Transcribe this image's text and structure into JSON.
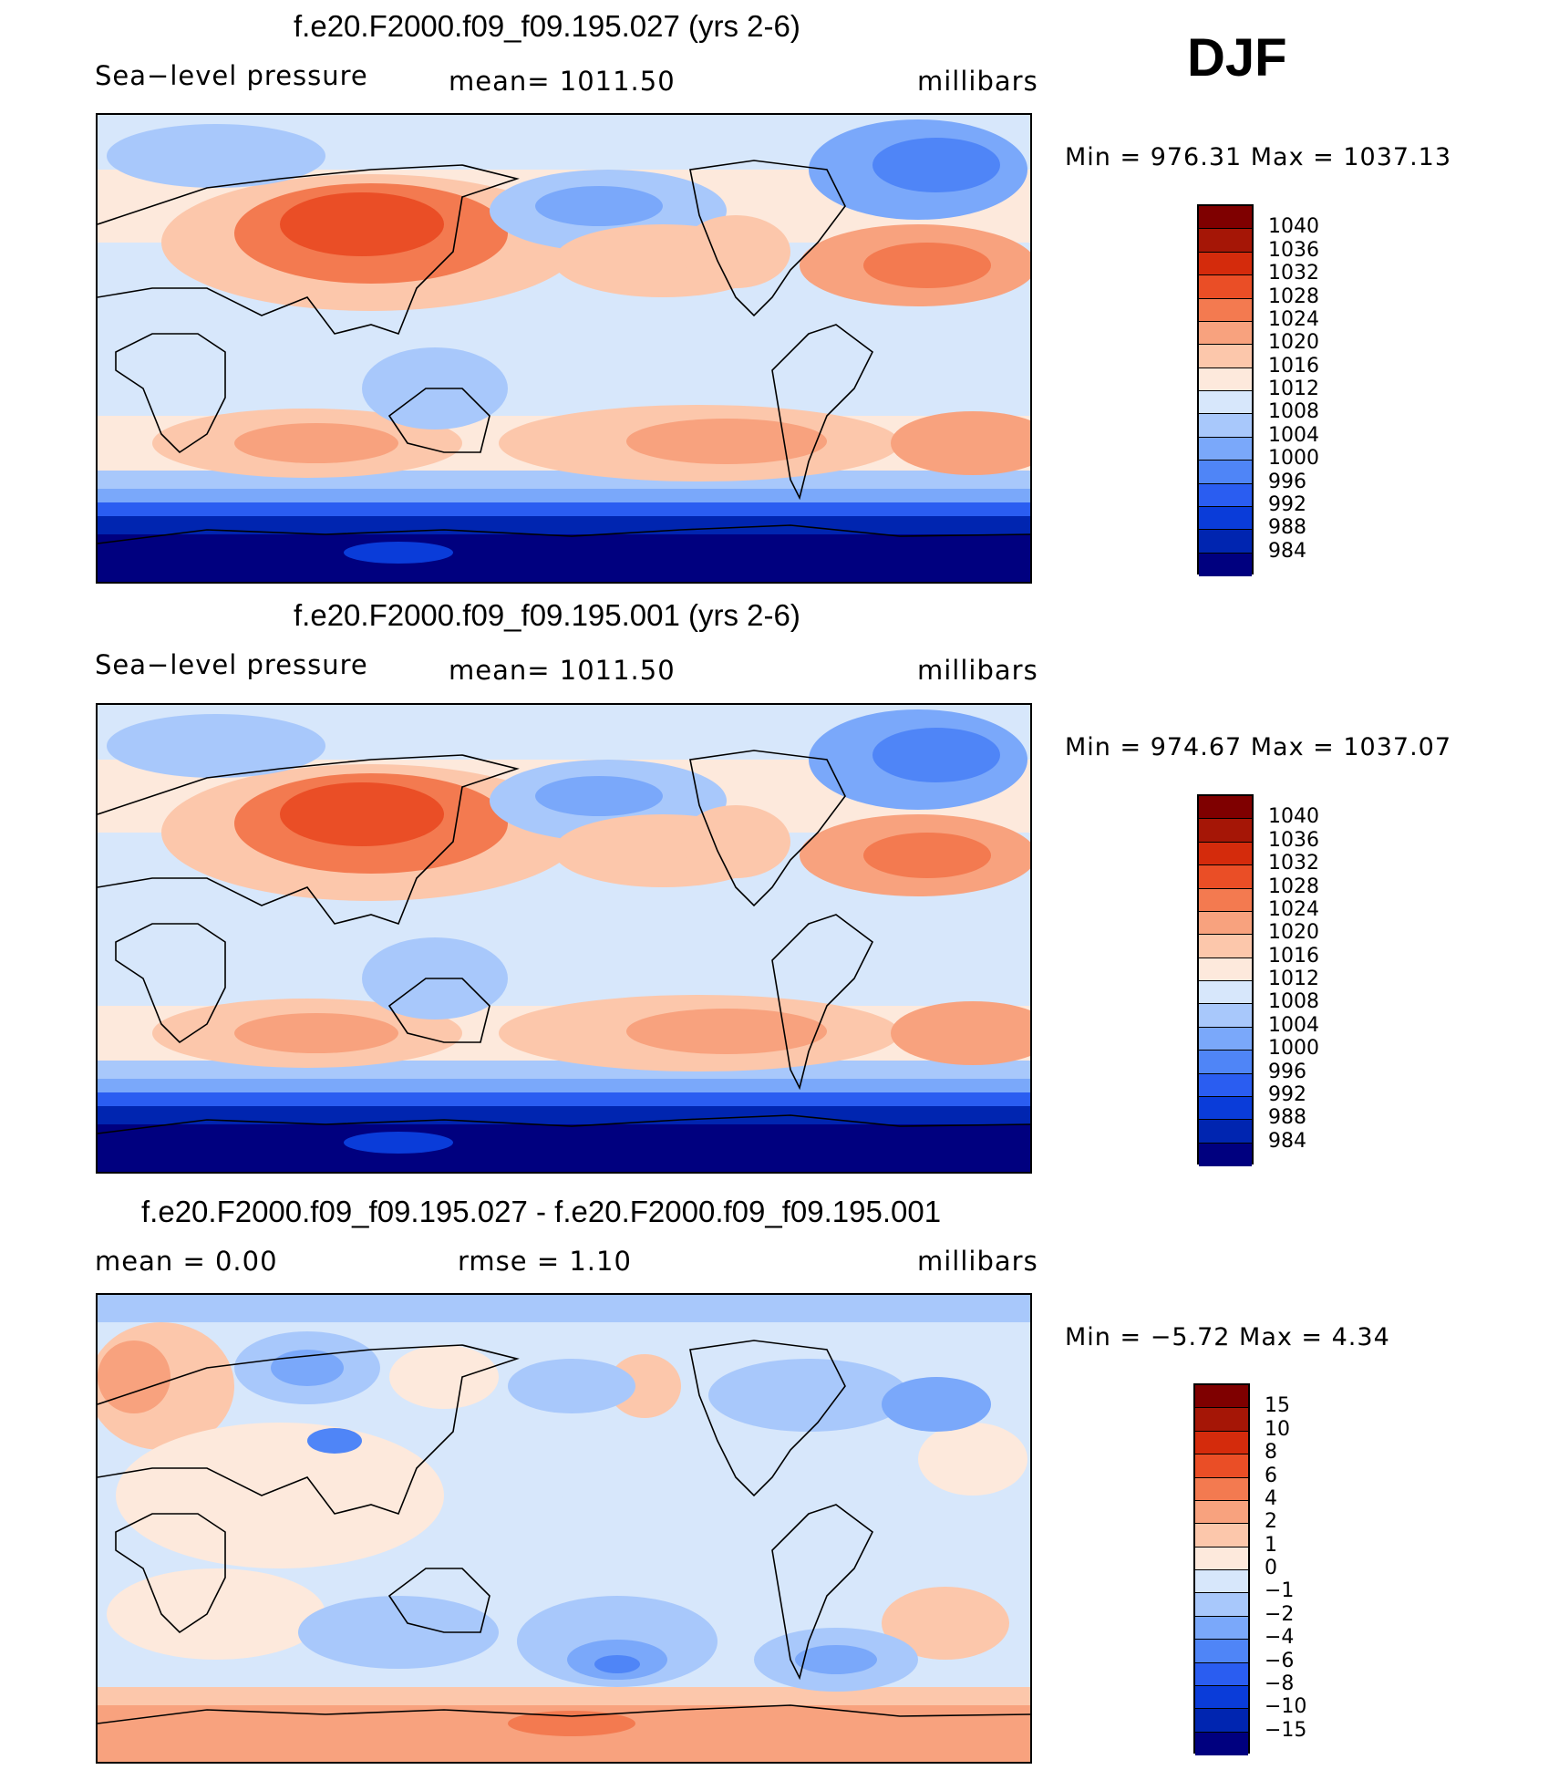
{
  "season": "DJF",
  "colors": {
    "slp": [
      "#00007f",
      "#0025b0",
      "#0a3cd9",
      "#2a5df1",
      "#4f85f7",
      "#7aa8fa",
      "#a8c8fb",
      "#d7e7fb",
      "#fde9dc",
      "#fcc7ab",
      "#f8a27e",
      "#f37a50",
      "#ea4e26",
      "#d42b0c",
      "#a51606",
      "#7f0000"
    ],
    "diff": [
      "#00007f",
      "#0025b0",
      "#0a3cd9",
      "#2a5df1",
      "#4f85f7",
      "#7aa8fa",
      "#a8c8fb",
      "#d7e7fb",
      "#fde9dc",
      "#fcc7ab",
      "#f8a27e",
      "#f37a50",
      "#ea4e26",
      "#d42b0c",
      "#a51606",
      "#7f0000"
    ]
  },
  "chart_data": [
    {
      "type": "heatmap",
      "title": "f.e20.F2000.f09_f09.195.027 (yrs 2-6)",
      "variable": "Sea−level pressure",
      "mean_label": "mean=  1011.50",
      "units": "millibars",
      "min_max": "Min  =  976.31  Max  =  1037.13",
      "min": 976.31,
      "max": 1037.13,
      "mean": 1011.5,
      "legend_levels": [
        "1040",
        "1036",
        "1032",
        "1028",
        "1024",
        "1020",
        "1016",
        "1012",
        "1008",
        "1004",
        "1000",
        "996",
        "992",
        "988",
        "984"
      ],
      "color_set": "slp"
    },
    {
      "type": "heatmap",
      "title": "f.e20.F2000.f09_f09.195.001 (yrs 2-6)",
      "variable": "Sea−level pressure",
      "mean_label": "mean=  1011.50",
      "units": "millibars",
      "min_max": "Min  =  974.67  Max  =  1037.07",
      "min": 974.67,
      "max": 1037.07,
      "mean": 1011.5,
      "legend_levels": [
        "1040",
        "1036",
        "1032",
        "1028",
        "1024",
        "1020",
        "1016",
        "1012",
        "1008",
        "1004",
        "1000",
        "996",
        "992",
        "988",
        "984"
      ],
      "color_set": "slp"
    },
    {
      "type": "heatmap",
      "title": "f.e20.F2000.f09_f09.195.027 - f.e20.F2000.f09_f09.195.001",
      "variable": "mean  =     0.00",
      "mean_label": "rmse  =     1.10",
      "units": "millibars",
      "min_max": "Min  =   −5.72  Max  =     4.34",
      "min": -5.72,
      "max": 4.34,
      "mean": 0.0,
      "rmse": 1.1,
      "legend_levels": [
        "15",
        "10",
        "8",
        "6",
        "4",
        "2",
        "1",
        "0",
        "−1",
        "−2",
        "−4",
        "−6",
        "−8",
        "−10",
        "−15"
      ],
      "color_set": "diff"
    }
  ]
}
